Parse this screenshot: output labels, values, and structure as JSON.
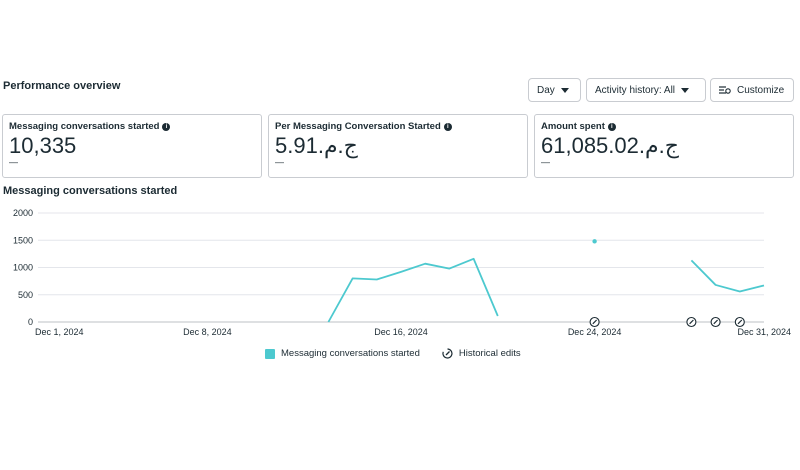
{
  "header": {
    "title": "Performance overview",
    "day_label": "Day",
    "activity_label": "Activity history: All",
    "customize_label": "Customize"
  },
  "cards": [
    {
      "label": "Messaging conversations started",
      "value": "10,335",
      "sub": "—"
    },
    {
      "label": "Per Messaging Conversation Started",
      "value": "5.91ج.م.‏",
      "sub": "—"
    },
    {
      "label": "Amount spent",
      "value": "61,085.02ج.م.‏",
      "sub": "—"
    }
  ],
  "chart": {
    "title": "Messaging conversations started",
    "legend": {
      "series_label": "Messaging conversations started",
      "edits_label": "Historical edits"
    }
  },
  "chart_data": {
    "type": "line",
    "title": "Messaging conversations started",
    "xlabel": "",
    "ylabel": "",
    "ylim": [
      0,
      2000
    ],
    "yticks": [
      0,
      500,
      1000,
      1500,
      2000
    ],
    "xticks": [
      "Dec 1, 2024",
      "Dec 8, 2024",
      "Dec 16, 2024",
      "Dec 24, 2024",
      "Dec 31, 2024"
    ],
    "x_days": [
      1,
      2,
      3,
      4,
      5,
      6,
      7,
      8,
      9,
      10,
      11,
      12,
      13,
      14,
      15,
      16,
      17,
      18,
      19,
      20,
      21,
      22,
      23,
      24,
      25,
      26,
      27,
      28,
      29,
      30,
      31
    ],
    "series": [
      {
        "name": "Messaging conversations started",
        "color": "#4dc9cf",
        "values": [
          null,
          null,
          null,
          null,
          null,
          null,
          null,
          null,
          null,
          null,
          null,
          null,
          0,
          800,
          780,
          920,
          1070,
          980,
          1160,
          110,
          null,
          null,
          null,
          1480,
          null,
          null,
          null,
          1130,
          680,
          560,
          670
        ]
      }
    ],
    "historical_edit_days": [
      24,
      28,
      29,
      30
    ],
    "grid": true,
    "legend_position": "bottom"
  }
}
